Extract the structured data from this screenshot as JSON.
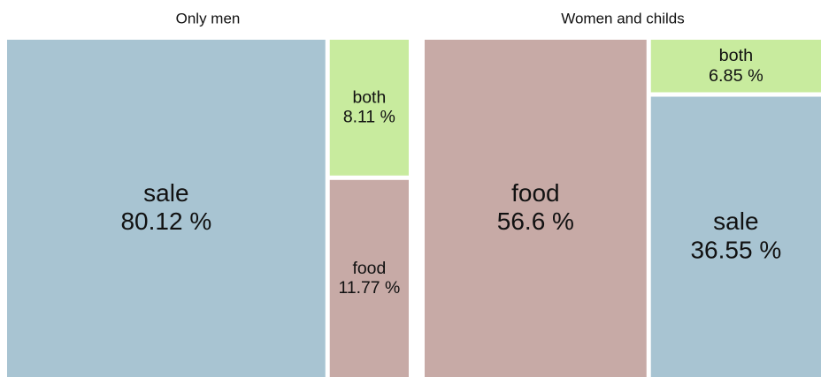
{
  "chart_data": [
    {
      "type": "treemap",
      "title": "Only men",
      "categories": [
        "sale",
        "both",
        "food"
      ],
      "values": [
        80.12,
        8.11,
        11.77
      ],
      "value_labels": [
        "80.12 %",
        "8.11 %",
        "11.77 %"
      ],
      "colors": [
        "#a8c4d2",
        "#c8eb9e",
        "#c7aaa6"
      ]
    },
    {
      "type": "treemap",
      "title": "Women and childs",
      "categories": [
        "food",
        "both",
        "sale"
      ],
      "values": [
        56.6,
        6.85,
        36.55
      ],
      "value_labels": [
        "56.6 %",
        "6.85 %",
        "36.55 %"
      ],
      "colors": [
        "#c7aaa6",
        "#c8eb9e",
        "#a8c4d2"
      ]
    }
  ]
}
